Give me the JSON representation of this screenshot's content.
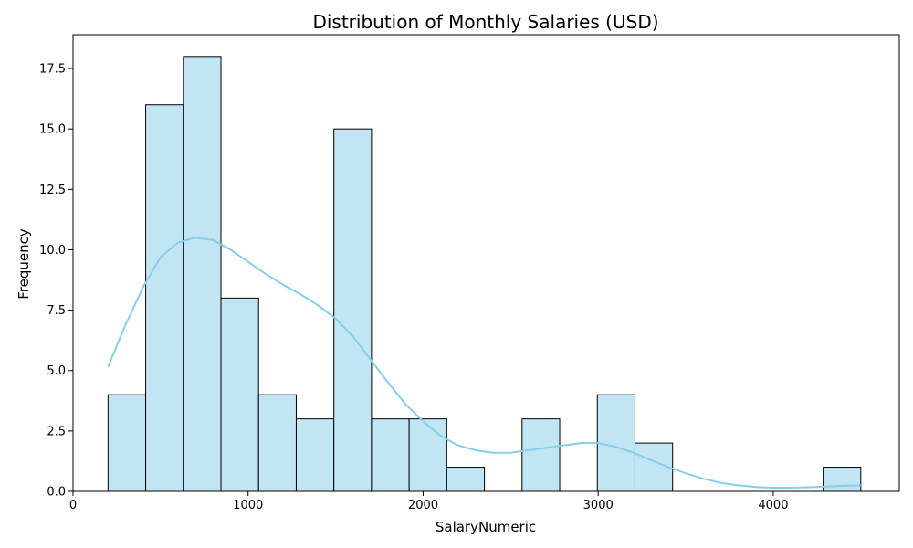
{
  "chart_data": {
    "type": "bar",
    "subtype": "histogram",
    "title": "Distribution of Monthly Salaries (USD)",
    "xlabel": "SalaryNumeric",
    "ylabel": "Frequency",
    "xlim": [
      0,
      4720
    ],
    "ylim": [
      0,
      18.9
    ],
    "xticks": [
      0,
      1000,
      2000,
      3000,
      4000
    ],
    "yticks": [
      0.0,
      2.5,
      5.0,
      7.5,
      10.0,
      12.5,
      15.0,
      17.5
    ],
    "xtick_labels": [
      "0",
      "1000",
      "2000",
      "3000",
      "4000"
    ],
    "ytick_labels": [
      "0.0",
      "2.5",
      "5.0",
      "7.5",
      "10.0",
      "12.5",
      "15.0",
      "17.5"
    ],
    "bin_start": 200,
    "bin_end": 4500,
    "counts": [
      4,
      16,
      18,
      8,
      4,
      3,
      15,
      3,
      3,
      1,
      0,
      3,
      0,
      4,
      2,
      0,
      0,
      0,
      0,
      1
    ],
    "kde": {
      "x": [
        200,
        300,
        400,
        500,
        600,
        700,
        800,
        900,
        1000,
        1100,
        1200,
        1300,
        1400,
        1500,
        1600,
        1700,
        1800,
        1900,
        2000,
        2100,
        2200,
        2300,
        2400,
        2500,
        2600,
        2700,
        2800,
        2900,
        3000,
        3100,
        3200,
        3300,
        3400,
        3500,
        3600,
        3700,
        3800,
        3900,
        4000,
        4100,
        4200,
        4300,
        4400,
        4500
      ],
      "y": [
        5.15,
        6.9,
        8.45,
        9.7,
        10.3,
        10.5,
        10.4,
        10.0,
        9.5,
        9.0,
        8.55,
        8.15,
        7.7,
        7.15,
        6.4,
        5.45,
        4.5,
        3.6,
        2.9,
        2.3,
        1.9,
        1.7,
        1.6,
        1.6,
        1.7,
        1.8,
        1.9,
        2.0,
        2.0,
        1.85,
        1.6,
        1.3,
        1.0,
        0.75,
        0.52,
        0.35,
        0.25,
        0.18,
        0.15,
        0.15,
        0.17,
        0.2,
        0.23,
        0.25
      ]
    },
    "grid": false,
    "colors": {
      "bar_fill": "#c2e5f3",
      "bar_edge": "#000000",
      "kde_line": "#87ceeb"
    }
  }
}
